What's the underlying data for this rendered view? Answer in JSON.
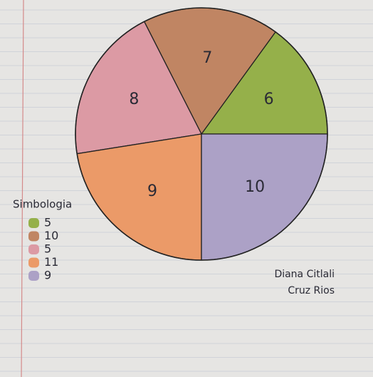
{
  "chart_data": {
    "type": "pie",
    "categories": [
      "5",
      "10",
      "5",
      "11",
      "9"
    ],
    "values": [
      6,
      7,
      8,
      9,
      10
    ],
    "colors": [
      "#95b04a",
      "#c08563",
      "#dc9aa4",
      "#eb9a68",
      "#aca1c6"
    ],
    "legend_title": "Simbologia",
    "author": [
      "Diana Citlali",
      "Cruz Rios"
    ]
  }
}
